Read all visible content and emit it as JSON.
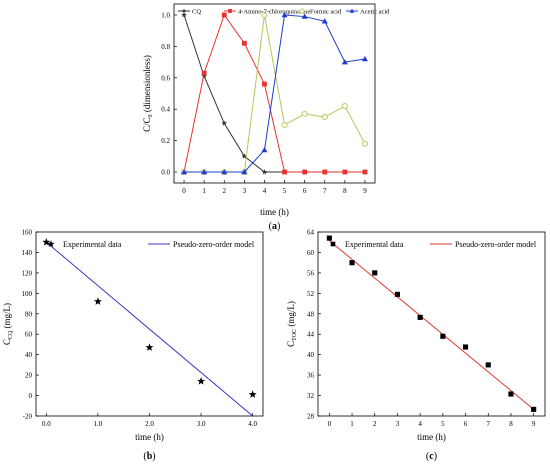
{
  "chart_data": [
    {
      "type": "line",
      "panel_label": "(a)",
      "xlabel": "time (h)",
      "ylabel": {
        "main": "C/C",
        "sub": "0",
        "rest": " (dimensionless)"
      },
      "xlim": [
        -0.5,
        9.5
      ],
      "ylim": [
        -0.07,
        1.07
      ],
      "xticks": [
        0,
        1,
        2,
        3,
        4,
        5,
        6,
        7,
        8,
        9
      ],
      "yticks": [
        0.0,
        0.2,
        0.4,
        0.6,
        0.8,
        1.0
      ],
      "ytick_labels": [
        "0.0",
        "0.2",
        "0.4",
        "0.6",
        "0.8",
        "1.0"
      ],
      "legend_position": "top",
      "grid": false,
      "series": [
        {
          "name": "CQ",
          "color": "#333333",
          "marker": "star",
          "x": [
            0,
            1,
            2,
            3,
            4,
            5
          ],
          "y": [
            1.0,
            0.61,
            0.31,
            0.1,
            0.0,
            0.0
          ]
        },
        {
          "name": "4-Amino-7-chloroquinoline",
          "color": "#e8322f",
          "marker": "square",
          "x": [
            0,
            1,
            2,
            3,
            4,
            5,
            6,
            7,
            8,
            9
          ],
          "y": [
            0.0,
            0.63,
            1.0,
            0.82,
            0.56,
            0.0,
            0.0,
            0.0,
            0.0,
            0.0
          ]
        },
        {
          "name": "Formic acid",
          "color": "#b3c85a",
          "marker": "circle",
          "x": [
            0,
            1,
            2,
            3,
            4,
            5,
            6,
            7,
            8,
            9
          ],
          "y": [
            0.0,
            0.0,
            0.0,
            0.0,
            1.0,
            0.3,
            0.37,
            0.35,
            0.42,
            0.18
          ]
        },
        {
          "name": "Acetic acid",
          "color": "#1e3cd2",
          "marker": "triangle",
          "x": [
            0,
            1,
            2,
            3,
            4,
            5,
            6,
            7,
            8,
            9
          ],
          "y": [
            0.0,
            0.0,
            0.0,
            0.0,
            0.14,
            1.0,
            0.99,
            0.96,
            0.7,
            0.72
          ]
        }
      ]
    },
    {
      "type": "scatter",
      "panel_label": "(b)",
      "xlabel": "time (h)",
      "ylabel": {
        "main": "C",
        "sub": "CQ",
        "rest": " (mg/L)"
      },
      "xlim": [
        -0.2,
        4.2
      ],
      "ylim": [
        -20,
        160
      ],
      "xticks": [
        0,
        1,
        2,
        3,
        4
      ],
      "xtick_labels": [
        "0.0",
        "1.0",
        "2.0",
        "3.0",
        "4.0"
      ],
      "yticks": [
        -20,
        0,
        20,
        40,
        60,
        80,
        100,
        120,
        140,
        160
      ],
      "ytick_labels": [
        "-20",
        "0",
        "20",
        "40",
        "60",
        "80",
        "100",
        "120",
        "140",
        "160"
      ],
      "legend_position": "top",
      "grid": false,
      "series": [
        {
          "name": "Experimental data",
          "color": "#000000",
          "marker": "star",
          "line": false,
          "x": [
            0,
            1,
            2,
            3,
            4
          ],
          "y": [
            150,
            92,
            47,
            14,
            1
          ]
        }
      ],
      "fit": {
        "name": "Pseudo-zero-order model",
        "color": "#3a37c8",
        "x": [
          0,
          4
        ],
        "y": [
          150,
          -20
        ]
      }
    },
    {
      "type": "scatter",
      "panel_label": "(c)",
      "xlabel": "time (h)",
      "ylabel": {
        "main": "C",
        "sub": "TOC",
        "rest": " (mg/L)"
      },
      "xlim": [
        -0.5,
        9.5
      ],
      "ylim": [
        28,
        64
      ],
      "xticks": [
        0,
        1,
        2,
        3,
        4,
        5,
        6,
        7,
        8,
        9
      ],
      "yticks": [
        28,
        32,
        36,
        40,
        44,
        48,
        52,
        56,
        60,
        64
      ],
      "ytick_labels": [
        "28",
        "32",
        "36",
        "40",
        "44",
        "48",
        "52",
        "56",
        "60",
        "64"
      ],
      "legend_position": "top",
      "grid": false,
      "series": [
        {
          "name": "Experimental data",
          "color": "#000000",
          "marker": "square",
          "line": false,
          "x": [
            0,
            1,
            2,
            3,
            4,
            5,
            6,
            7,
            8,
            9
          ],
          "y": [
            62.8,
            58.0,
            56.0,
            51.8,
            47.3,
            43.6,
            41.5,
            38.0,
            32.3,
            29.3
          ]
        }
      ],
      "fit": {
        "name": "Pseudo-zero-order model",
        "color": "#e53a34",
        "x": [
          0,
          9
        ],
        "y": [
          62.3,
          29.3
        ]
      }
    }
  ]
}
